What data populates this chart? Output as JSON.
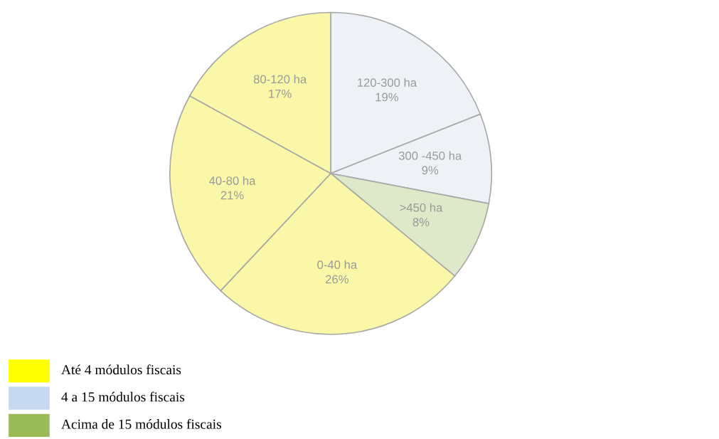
{
  "chart_data": {
    "type": "pie",
    "categories": [
      "120-300 ha",
      "300 -450 ha",
      ">450 ha",
      "0-40 ha",
      "40-80 ha",
      "80-120 ha"
    ],
    "values": [
      19,
      9,
      8,
      26,
      21,
      17
    ],
    "value_labels": [
      "19%",
      "9%",
      "8%",
      "26%",
      "21%",
      "17%"
    ],
    "colors": [
      "#eef2f7",
      "#eef2f7",
      "#dde9c8",
      "#fbf7a8",
      "#fbf7a8",
      "#fbf7a8"
    ],
    "annotations": [
      "Até 4 módulos fiscais",
      "4 a 15 módulos fiscais",
      "Acima de 15 módulos fiscais"
    ]
  }
}
